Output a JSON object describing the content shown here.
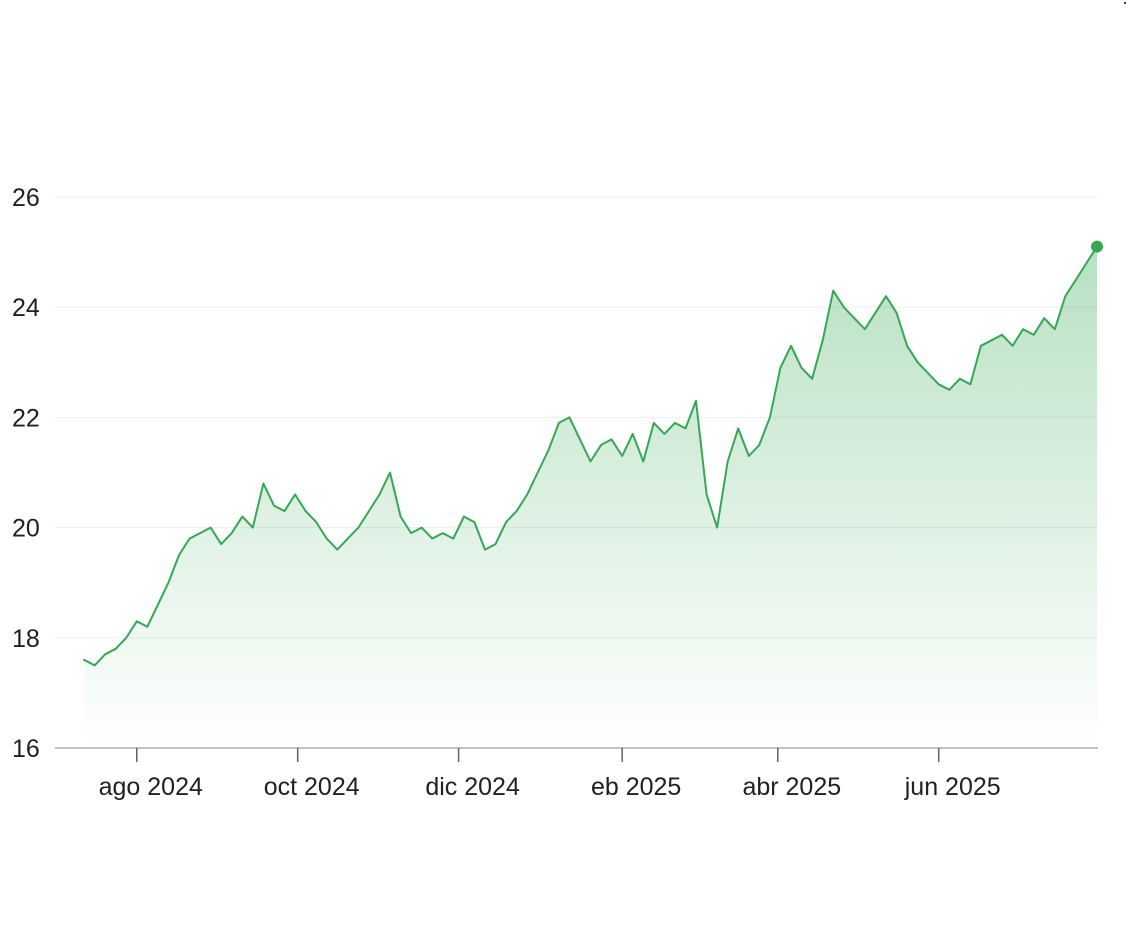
{
  "chart_data": {
    "type": "area",
    "title": "",
    "xlabel": "",
    "ylabel": "",
    "ylim": [
      16,
      26
    ],
    "y_ticks": [
      16,
      18,
      20,
      22,
      24,
      26
    ],
    "y_tick_labels": [
      "16",
      "18",
      "20",
      "22",
      "24",
      "26"
    ],
    "x_range": [
      "2024-07-01",
      "2025-07-31"
    ],
    "x_ticks": [
      {
        "date": "2024-08-01",
        "label": "ago 2024"
      },
      {
        "date": "2024-10-01",
        "label": "oct 2024"
      },
      {
        "date": "2024-12-01",
        "label": "dic 2024"
      },
      {
        "date": "2025-02-01",
        "label": "eb 2025"
      },
      {
        "date": "2025-04-01",
        "label": "abr 2025"
      },
      {
        "date": "2025-06-01",
        "label": "jun 2025"
      }
    ],
    "grid": true,
    "legend": "none",
    "colors": {
      "line": "#34a853",
      "fill_top": "#34a853",
      "grid": "#eeeeee",
      "axis": "#9aa0a6"
    },
    "series": [
      {
        "x": [
          "2024-07-12",
          "2024-07-16",
          "2024-07-20",
          "2024-07-24",
          "2024-07-28",
          "2024-08-01",
          "2024-08-05",
          "2024-08-09",
          "2024-08-13",
          "2024-08-17",
          "2024-08-21",
          "2024-08-25",
          "2024-08-29",
          "2024-09-02",
          "2024-09-06",
          "2024-09-10",
          "2024-09-14",
          "2024-09-18",
          "2024-09-22",
          "2024-09-26",
          "2024-09-30",
          "2024-10-04",
          "2024-10-08",
          "2024-10-12",
          "2024-10-16",
          "2024-10-20",
          "2024-10-24",
          "2024-10-28",
          "2024-11-01",
          "2024-11-05",
          "2024-11-09",
          "2024-11-13",
          "2024-11-17",
          "2024-11-21",
          "2024-11-25",
          "2024-11-29",
          "2024-12-03",
          "2024-12-07",
          "2024-12-11",
          "2024-12-15",
          "2024-12-19",
          "2024-12-23",
          "2024-12-27",
          "2024-12-31",
          "2025-01-04",
          "2025-01-08",
          "2025-01-12",
          "2025-01-16",
          "2025-01-20",
          "2025-01-24",
          "2025-01-28",
          "2025-02-01",
          "2025-02-05",
          "2025-02-09",
          "2025-02-13",
          "2025-02-17",
          "2025-02-21",
          "2025-02-25",
          "2025-03-01",
          "2025-03-05",
          "2025-03-09",
          "2025-03-13",
          "2025-03-17",
          "2025-03-21",
          "2025-03-25",
          "2025-03-29",
          "2025-04-02",
          "2025-04-06",
          "2025-04-10",
          "2025-04-14",
          "2025-04-18",
          "2025-04-22",
          "2025-04-26",
          "2025-04-30",
          "2025-05-04",
          "2025-05-08",
          "2025-05-12",
          "2025-05-16",
          "2025-05-20",
          "2025-05-24",
          "2025-05-28",
          "2025-06-01",
          "2025-06-05",
          "2025-06-09",
          "2025-06-13",
          "2025-06-17",
          "2025-06-21",
          "2025-06-25",
          "2025-06-29",
          "2025-07-03",
          "2025-07-07",
          "2025-07-11",
          "2025-07-15",
          "2025-07-19",
          "2025-07-23",
          "2025-07-27",
          "2025-07-31"
        ],
        "y": [
          17.6,
          17.5,
          17.7,
          17.8,
          18.0,
          18.3,
          18.2,
          18.6,
          19.0,
          19.5,
          19.8,
          19.9,
          20.0,
          19.7,
          19.9,
          20.2,
          20.0,
          20.8,
          20.4,
          20.3,
          20.6,
          20.3,
          20.1,
          19.8,
          19.6,
          19.8,
          20.0,
          20.3,
          20.6,
          21.0,
          20.2,
          19.9,
          20.0,
          19.8,
          19.9,
          19.8,
          20.2,
          20.1,
          19.6,
          19.7,
          20.1,
          20.3,
          20.6,
          21.0,
          21.4,
          21.9,
          22.0,
          21.6,
          21.2,
          21.5,
          21.6,
          21.3,
          21.7,
          21.2,
          21.9,
          21.7,
          21.9,
          21.8,
          22.3,
          20.6,
          20.0,
          21.2,
          21.8,
          21.3,
          21.5,
          22.0,
          22.9,
          23.3,
          22.9,
          22.7,
          23.4,
          24.3,
          24.0,
          23.8,
          23.6,
          23.9,
          24.2,
          23.9,
          23.3,
          23.0,
          22.8,
          22.6,
          22.5,
          22.7,
          22.6,
          23.3,
          23.4,
          23.5,
          23.3,
          23.6,
          23.5,
          23.8,
          23.6,
          24.2,
          24.5,
          24.8,
          25.1
        ]
      }
    ]
  }
}
